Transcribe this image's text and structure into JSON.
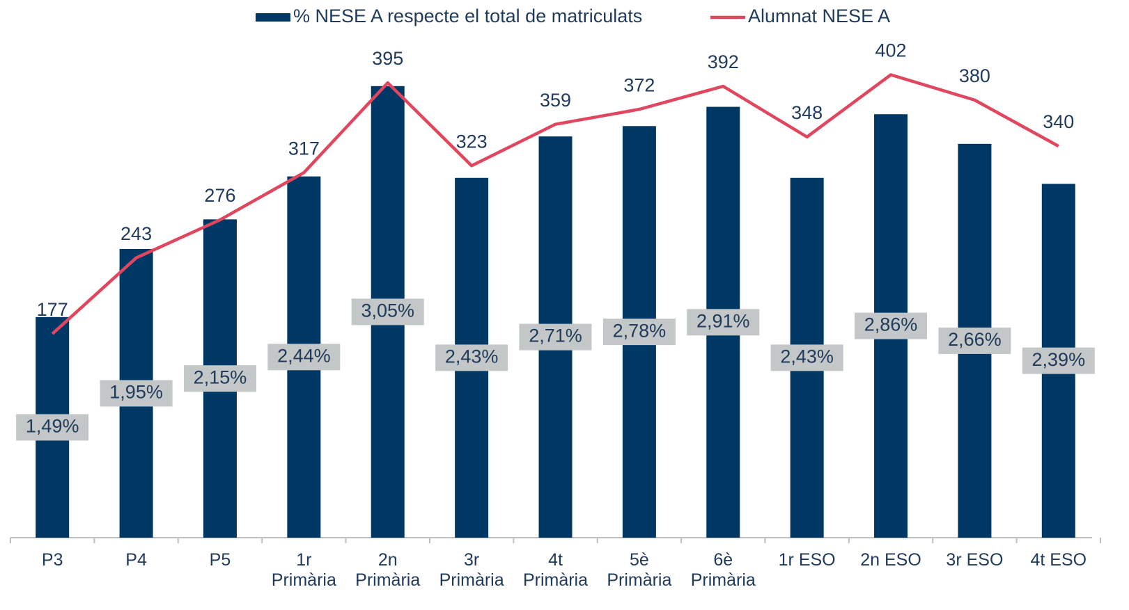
{
  "chart_data": {
    "type": "bar",
    "categories": [
      "P3",
      "P4",
      "P5",
      "1r Primària",
      "2n Primària",
      "3r Primària",
      "4t Primària",
      "5è Primària",
      "6è Primària",
      "1r ESO",
      "2n ESO",
      "3r ESO",
      "4t ESO"
    ],
    "series": [
      {
        "name": "% NESE A respecte el total de matriculats",
        "type": "bar",
        "color": "#003865",
        "values": [
          1.49,
          1.95,
          2.15,
          2.44,
          3.05,
          2.43,
          2.71,
          2.78,
          2.91,
          2.43,
          2.86,
          2.66,
          2.39
        ],
        "value_labels": [
          "1,49%",
          "1,95%",
          "2,15%",
          "2,44%",
          "3,05%",
          "2,43%",
          "2,71%",
          "2,78%",
          "2,91%",
          "2,43%",
          "2,86%",
          "2,66%",
          "2,39%"
        ]
      },
      {
        "name": "Alumnat NESE A",
        "type": "line",
        "axis": "y2",
        "color": "#e0475f",
        "values": [
          177,
          243,
          276,
          317,
          395,
          323,
          359,
          372,
          392,
          348,
          402,
          380,
          340
        ]
      }
    ],
    "ylim": [
      0,
      3.5
    ],
    "y2lim": [
      0,
      450
    ],
    "legend": "top"
  }
}
